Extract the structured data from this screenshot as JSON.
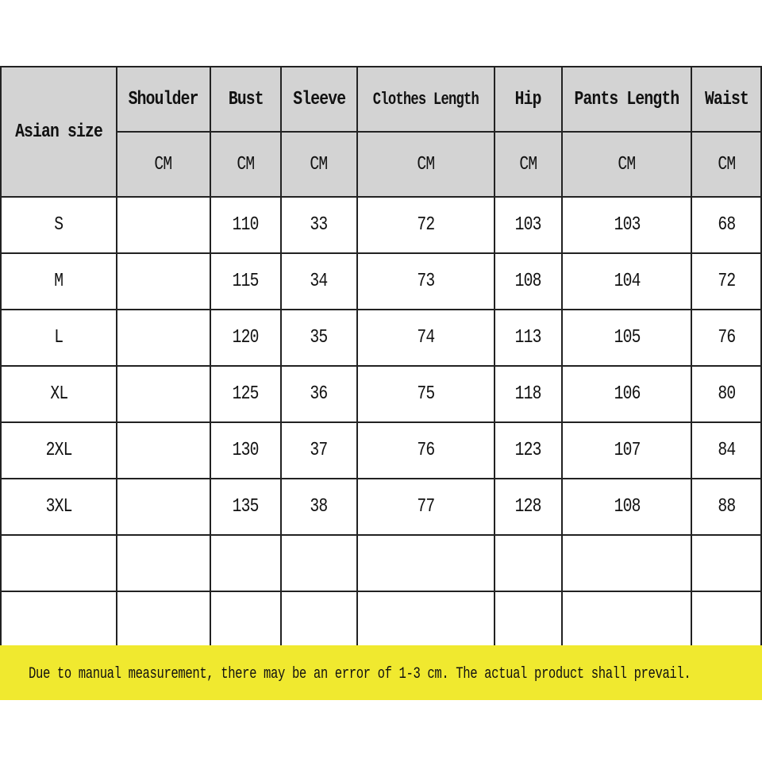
{
  "table": {
    "size_header": "Asian size",
    "columns": [
      "Shoulder",
      "Bust",
      "Sleeve",
      "Clothes Length",
      "Hip",
      "Pants Length",
      "Waist"
    ],
    "unit": "CM",
    "rows": [
      [
        "S",
        "",
        "110",
        "33",
        "72",
        "103",
        "103",
        "68"
      ],
      [
        "M",
        "",
        "115",
        "34",
        "73",
        "108",
        "104",
        "72"
      ],
      [
        "L",
        "",
        "120",
        "35",
        "74",
        "113",
        "105",
        "76"
      ],
      [
        "XL",
        "",
        "125",
        "36",
        "75",
        "118",
        "106",
        "80"
      ],
      [
        "2XL",
        "",
        "130",
        "37",
        "76",
        "123",
        "107",
        "84"
      ],
      [
        "3XL",
        "",
        "135",
        "38",
        "77",
        "128",
        "108",
        "88"
      ],
      [
        "",
        "",
        "",
        "",
        "",
        "",
        "",
        ""
      ],
      [
        "",
        "",
        "",
        "",
        "",
        "",
        "",
        ""
      ]
    ]
  },
  "note": "Due to manual measurement, there may be an error of 1-3 cm. The actual product shall prevail.",
  "colors": {
    "header_bg": "#d3d3d3",
    "note_bg": "#f0e92f",
    "border": "#222222"
  }
}
